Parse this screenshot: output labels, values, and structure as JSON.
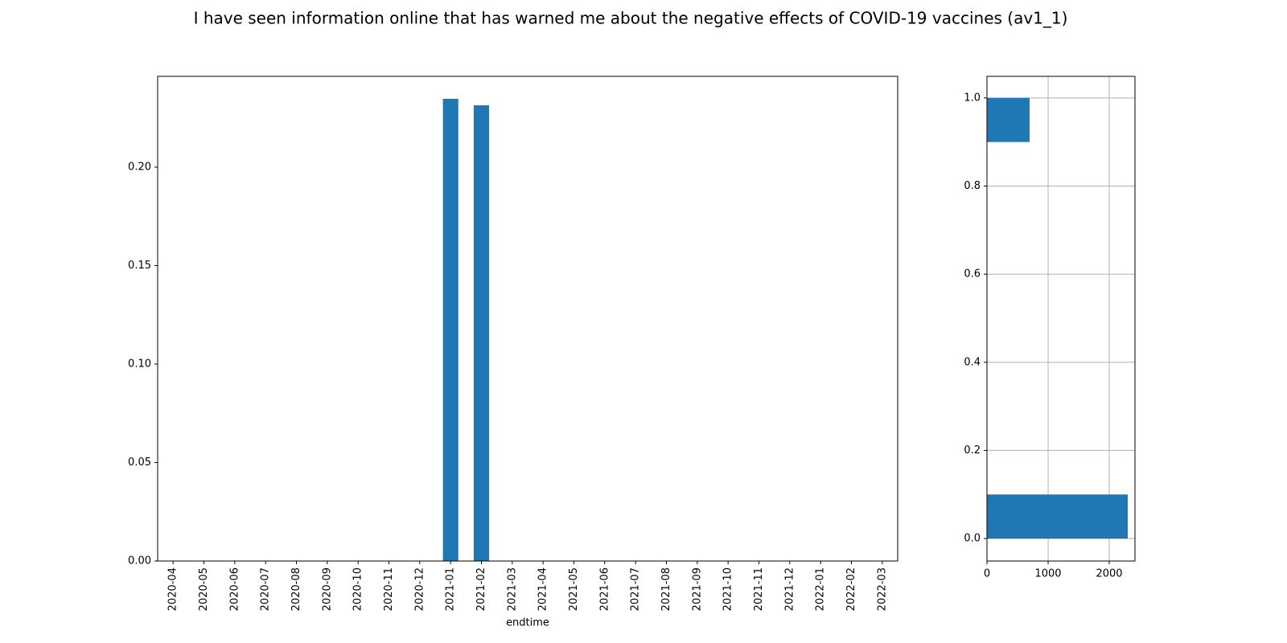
{
  "chart_data": [
    {
      "type": "bar",
      "title": "I have seen information online that has warned me about the negative effects of COVID-19 vaccines (av1_1)",
      "xlabel": "endtime",
      "categories": [
        "2020-04",
        "2020-05",
        "2020-06",
        "2020-07",
        "2020-08",
        "2020-09",
        "2020-10",
        "2020-11",
        "2020-12",
        "2021-01",
        "2021-02",
        "2021-03",
        "2021-04",
        "2021-05",
        "2021-06",
        "2021-07",
        "2021-08",
        "2021-09",
        "2021-10",
        "2021-11",
        "2021-12",
        "2022-01",
        "2022-02",
        "2022-03"
      ],
      "values": [
        0,
        0,
        0,
        0,
        0,
        0,
        0,
        0,
        0,
        0.2347,
        0.2314,
        0,
        0,
        0,
        0,
        0,
        0,
        0,
        0,
        0,
        0,
        0,
        0,
        0
      ],
      "color": "#1f77b4",
      "ylim": [
        0,
        0.2461
      ],
      "yticks": [
        {
          "value": 0,
          "label": "0.00"
        },
        {
          "value": 0.05,
          "label": "0.05"
        },
        {
          "value": 0.1,
          "label": "0.10"
        },
        {
          "value": 0.15,
          "label": "0.15"
        },
        {
          "value": 0.2,
          "label": "0.20"
        }
      ],
      "grid": false
    },
    {
      "type": "histogram",
      "orientation": "horizontal",
      "bins": [
        0,
        0.1,
        0.2,
        0.3,
        0.4,
        0.5,
        0.6,
        0.7,
        0.8,
        0.9,
        1
      ],
      "values": [
        2303,
        0,
        0,
        0,
        0,
        0,
        0,
        0,
        0,
        697
      ],
      "color": "#1f77b4",
      "xlim": [
        0,
        2421
      ],
      "xticks": [
        0,
        1000,
        2000
      ],
      "ylim": [
        -0.051,
        1.049
      ],
      "yticks": [
        {
          "value": 0,
          "label": "0.0"
        },
        0.2,
        0.4,
        0.6,
        0.8,
        {
          "value": 1,
          "label": "1.0"
        }
      ],
      "grid": true
    }
  ]
}
